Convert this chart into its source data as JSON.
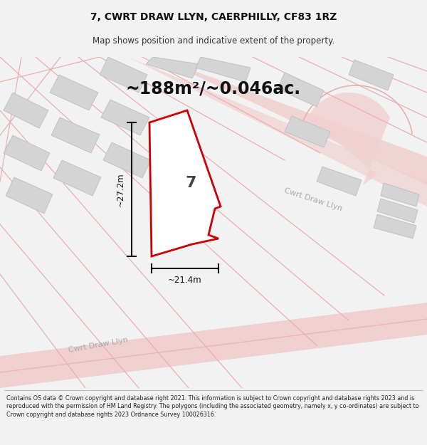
{
  "title_line1": "7, CWRT DRAW LLYN, CAERPHILLY, CF83 1RZ",
  "title_line2": "Map shows position and indicative extent of the property.",
  "area_text": "~188m²/~0.046ac.",
  "label_7": "7",
  "dim_vertical": "~27.2m",
  "dim_horizontal": "~21.4m",
  "road_label_lower": "Cwrt Draw Llyn",
  "road_label_upper": "Cwrt Draw Llyn",
  "footer_text": "Contains OS data © Crown copyright and database right 2021. This information is subject to Crown copyright and database rights 2023 and is reproduced with the permission of HM Land Registry. The polygons (including the associated geometry, namely x, y co-ordinates) are subject to Crown copyright and database rights 2023 Ordnance Survey 100026316.",
  "bg_color": "#f2f2f2",
  "map_bg": "#eeecec",
  "plot_fill": "#ffffff",
  "plot_edge": "#cc0000",
  "building_fill": "#d4d4d4",
  "building_edge": "#bebebe",
  "road_fill": "#f0d0d0",
  "road_line": "#e8b0b0",
  "dim_color": "#111111",
  "footer_bg": "#ffffff",
  "title_fs": 10,
  "subtitle_fs": 8.5,
  "area_fs": 17,
  "label_fs": 16,
  "dim_fs": 8.5,
  "road_fs": 8,
  "footer_fs": 5.8
}
